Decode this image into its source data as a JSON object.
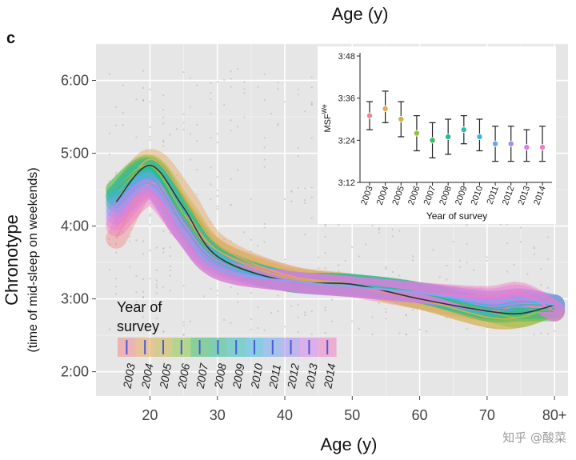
{
  "panel_letter": "c",
  "watermark": "知乎 @酸菜",
  "chart_data": [
    {
      "type": "line",
      "title": "Age (y)",
      "xlabel": "Age (y)",
      "ylabel": "Chronotype",
      "ylabel_sub": "(time of mid-sleep on weekends)",
      "xlim": [
        12,
        82
      ],
      "ylim": [
        "1:40",
        "6:30"
      ],
      "x_ticks": [
        {
          "value": 20,
          "label": "20"
        },
        {
          "value": 30,
          "label": "30"
        },
        {
          "value": 40,
          "label": "40"
        },
        {
          "value": 50,
          "label": "50"
        },
        {
          "value": 60,
          "label": "60"
        },
        {
          "value": 70,
          "label": "70"
        },
        {
          "value": 80,
          "label": "80+"
        }
      ],
      "y_ticks": [
        "2:00",
        "3:00",
        "4:00",
        "5:00",
        "6:00"
      ],
      "grid": true,
      "legend": {
        "title_line1": "Year of",
        "title_line2": "survey",
        "placement": "bottom-left",
        "entries": [
          "2003",
          "2004",
          "2005",
          "2006",
          "2007",
          "2008",
          "2009",
          "2010",
          "2011",
          "2012",
          "2013",
          "2014"
        ]
      },
      "series": [
        {
          "name": "2003",
          "color": "#f08a8a",
          "x": [
            15,
            20,
            25,
            30,
            40,
            50,
            60,
            70,
            75,
            80
          ],
          "y": [
            "3:50",
            "4:35",
            "4:10",
            "3:40",
            "3:20",
            "3:10",
            "3:00",
            "2:50",
            "2:55",
            "2:50"
          ]
        },
        {
          "name": "2004",
          "color": "#e6a75a",
          "x": [
            15,
            20,
            25,
            30,
            40,
            50,
            60,
            70,
            75,
            80
          ],
          "y": [
            "4:20",
            "4:55",
            "4:25",
            "3:45",
            "3:20",
            "3:12",
            "3:00",
            "2:45",
            "2:45",
            "2:55"
          ]
        },
        {
          "name": "2005",
          "color": "#c9b445",
          "x": [
            15,
            20,
            25,
            30,
            40,
            50,
            60,
            70,
            75,
            80
          ],
          "y": [
            "4:25",
            "4:50",
            "4:15",
            "3:40",
            "3:18",
            "3:12",
            "3:00",
            "2:45",
            "2:45",
            "2:55"
          ]
        },
        {
          "name": "2006",
          "color": "#8cc63f",
          "x": [
            15,
            20,
            25,
            30,
            40,
            50,
            60,
            70,
            75,
            80
          ],
          "y": [
            "4:30",
            "4:50",
            "4:10",
            "3:35",
            "3:15",
            "3:12",
            "3:05",
            "2:50",
            "2:45",
            "2:55"
          ]
        },
        {
          "name": "2007",
          "color": "#3dbb5f",
          "x": [
            15,
            20,
            25,
            30,
            40,
            50,
            60,
            70,
            75,
            80
          ],
          "y": [
            "4:30",
            "4:48",
            "4:08",
            "3:35",
            "3:15",
            "3:12",
            "3:05",
            "2:50",
            "2:50",
            "2:50"
          ]
        },
        {
          "name": "2008",
          "color": "#2ab98a",
          "x": [
            15,
            20,
            25,
            30,
            40,
            50,
            60,
            70,
            75,
            80
          ],
          "y": [
            "4:25",
            "4:47",
            "4:05",
            "3:33",
            "3:15",
            "3:12",
            "3:05",
            "2:52",
            "2:52",
            "2:52"
          ]
        },
        {
          "name": "2009",
          "color": "#2bbcb4",
          "x": [
            15,
            20,
            25,
            30,
            40,
            50,
            60,
            70,
            75,
            80
          ],
          "y": [
            "4:25",
            "4:45",
            "4:05",
            "3:33",
            "3:15",
            "3:12",
            "3:05",
            "2:53",
            "2:55",
            "2:55"
          ]
        },
        {
          "name": "2010",
          "color": "#39b6e0",
          "x": [
            15,
            20,
            25,
            30,
            40,
            50,
            60,
            70,
            75,
            80
          ],
          "y": [
            "4:20",
            "4:40",
            "4:00",
            "3:30",
            "3:15",
            "3:10",
            "3:05",
            "2:55",
            "2:58",
            "2:55"
          ]
        },
        {
          "name": "2011",
          "color": "#6da4ee",
          "x": [
            15,
            20,
            25,
            30,
            40,
            50,
            60,
            70,
            75,
            80
          ],
          "y": [
            "4:15",
            "4:35",
            "3:55",
            "3:28",
            "3:15",
            "3:10",
            "3:05",
            "2:58",
            "3:00",
            "2:55"
          ]
        },
        {
          "name": "2012",
          "color": "#a08ef0",
          "x": [
            15,
            20,
            25,
            30,
            40,
            50,
            60,
            70,
            75,
            80
          ],
          "y": [
            "4:10",
            "4:32",
            "3:55",
            "3:25",
            "3:15",
            "3:10",
            "3:05",
            "2:58",
            "3:00",
            "2:55"
          ]
        },
        {
          "name": "2013",
          "color": "#d57fe8",
          "x": [
            15,
            20,
            25,
            30,
            40,
            50,
            60,
            70,
            75,
            80
          ],
          "y": [
            "4:05",
            "4:30",
            "3:55",
            "3:25",
            "3:15",
            "3:10",
            "3:05",
            "3:00",
            "3:03",
            "2:50"
          ]
        },
        {
          "name": "2014",
          "color": "#f17bc4",
          "x": [
            15,
            20,
            25,
            30,
            40,
            50,
            60,
            70,
            75,
            80
          ],
          "y": [
            "4:00",
            "4:25",
            "3:55",
            "3:25",
            "3:15",
            "3:10",
            "3:05",
            "3:02",
            "3:05",
            "2:50"
          ]
        }
      ],
      "reference_line": {
        "color": "#2e3440",
        "x": [
          15,
          20,
          25,
          30,
          40,
          50,
          60,
          70,
          75,
          80
        ],
        "y": [
          "4:20",
          "4:50",
          "4:15",
          "3:35",
          "3:15",
          "3:12",
          "3:00",
          "2:50",
          "2:48",
          "2:55"
        ]
      }
    },
    {
      "type": "scatter",
      "title": "",
      "xlabel": "Year of survey",
      "ylabel": "MSF",
      "ylabel_sup": "We",
      "y_ticks": [
        "3:12",
        "3:24",
        "3:36",
        "3:48"
      ],
      "ylim": [
        "3:12",
        "3:48"
      ],
      "categories": [
        "2003",
        "2004",
        "2005",
        "2006",
        "2007",
        "2008",
        "2009",
        "2010",
        "2011",
        "2012",
        "2013",
        "2014"
      ],
      "series": [
        {
          "name": "MSF",
          "values": [
            "3:31",
            "3:33",
            "3:30",
            "3:26",
            "3:24",
            "3:25",
            "3:27",
            "3:25",
            "3:23",
            "3:23",
            "3:22",
            "3:22"
          ],
          "low": [
            "3:27",
            "3:29",
            "3:25",
            "3:21",
            "3:19",
            "3:20",
            "3:23",
            "3:21",
            "3:18",
            "3:18",
            "3:18",
            "3:18"
          ],
          "high": [
            "3:35",
            "3:38",
            "3:35",
            "3:31",
            "3:29",
            "3:30",
            "3:31",
            "3:30",
            "3:28",
            "3:28",
            "3:27",
            "3:28"
          ]
        }
      ]
    }
  ]
}
